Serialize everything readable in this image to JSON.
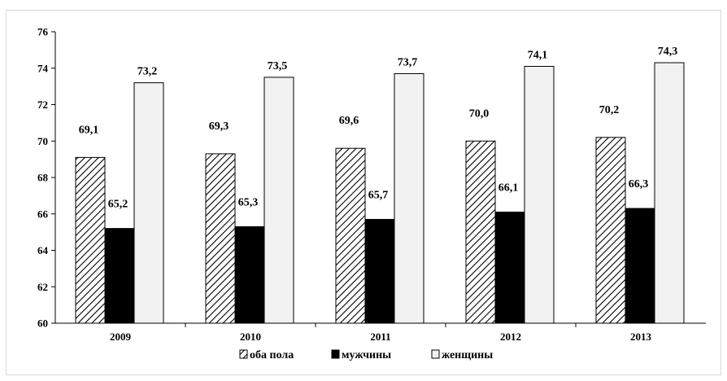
{
  "chart_data": {
    "type": "bar",
    "categories": [
      "2009",
      "2010",
      "2011",
      "2012",
      "2013"
    ],
    "series": [
      {
        "name": "оба пола",
        "values": [
          69.1,
          69.3,
          69.6,
          70.0,
          70.2
        ],
        "labels": [
          "69,1",
          "69,3",
          "69,6",
          "70,0",
          "70,2"
        ],
        "fill": "hatch"
      },
      {
        "name": "мужчины",
        "values": [
          65.2,
          65.3,
          65.7,
          66.1,
          66.3
        ],
        "labels": [
          "65,2",
          "65,3",
          "65,7",
          "66,1",
          "66,3"
        ],
        "fill": "#000000"
      },
      {
        "name": "женщины",
        "values": [
          73.2,
          73.5,
          73.7,
          74.1,
          74.3
        ],
        "labels": [
          "73,2",
          "73,5",
          "73,7",
          "74,1",
          "74,3"
        ],
        "fill": "#f2f2f2"
      }
    ],
    "yticks": [
      "60",
      "62",
      "64",
      "66",
      "68",
      "70",
      "72",
      "74",
      "76"
    ],
    "ylim": [
      60,
      76
    ],
    "grid": false,
    "legend_position": "bottom-center",
    "legend_items": [
      "оба пола",
      "мужчины",
      "женщины"
    ]
  }
}
